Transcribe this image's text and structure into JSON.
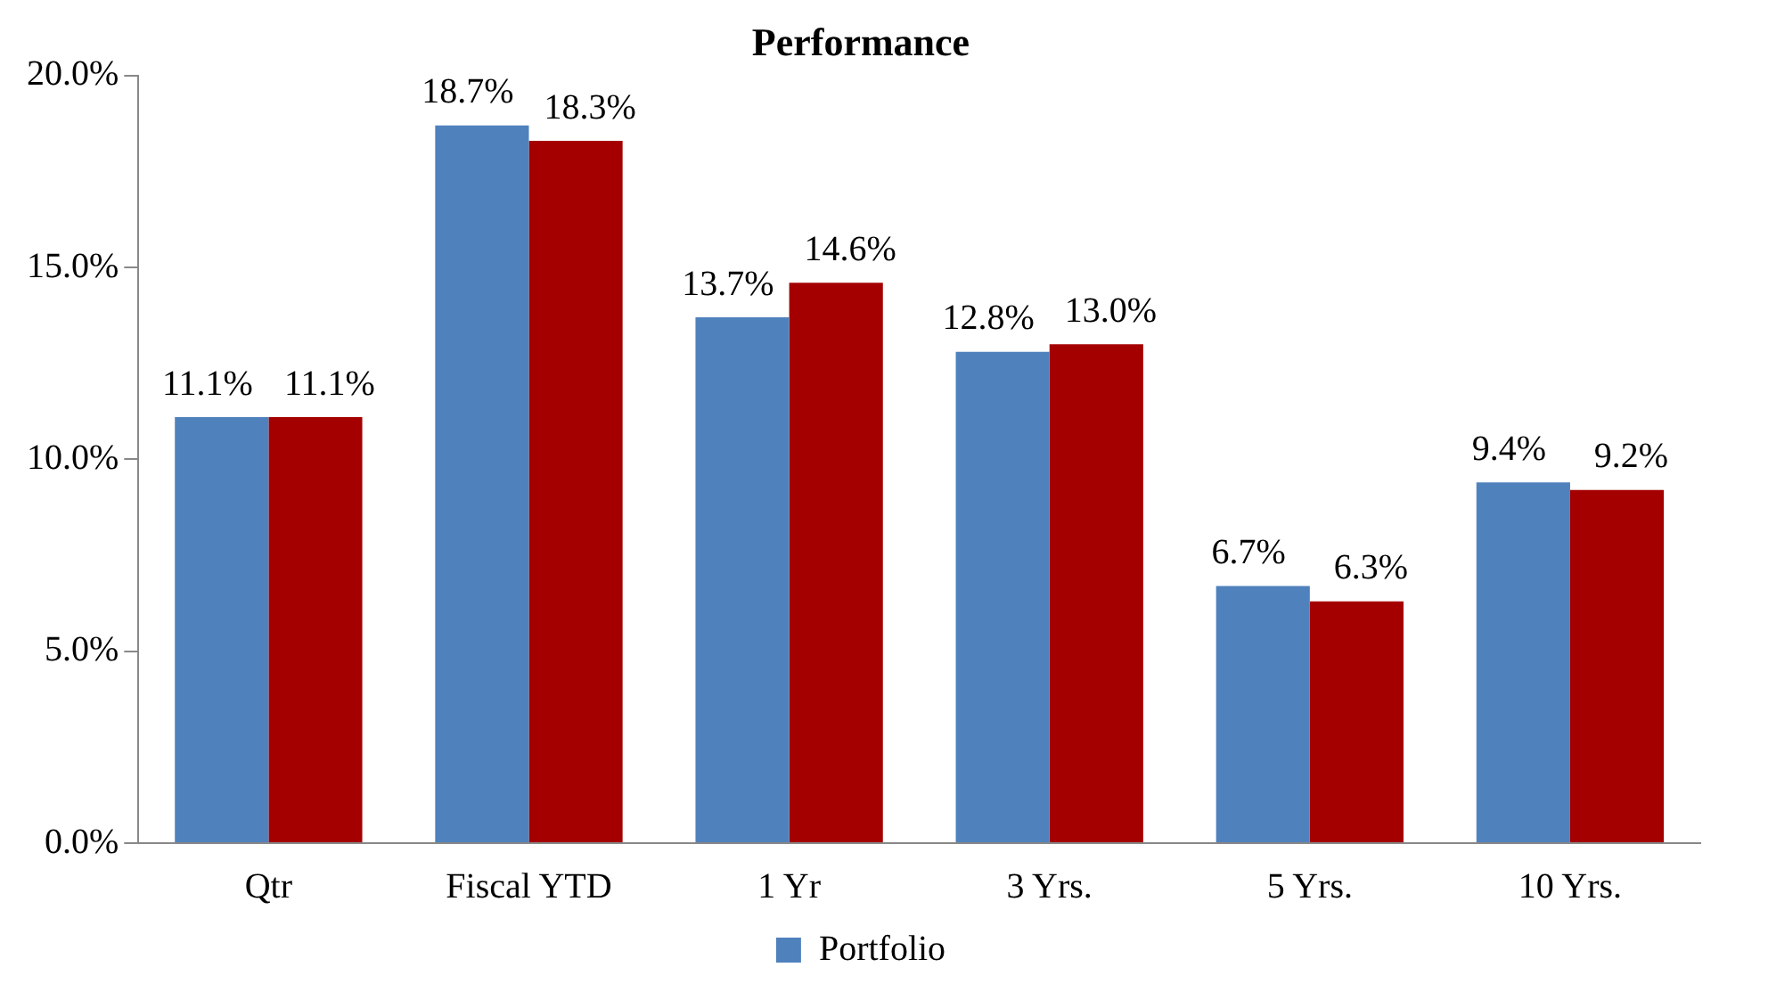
{
  "chart_data": {
    "type": "bar",
    "title": "Performance",
    "categories": [
      "Qtr",
      "Fiscal YTD",
      "1 Yr",
      "3 Yrs.",
      "5 Yrs.",
      "10 Yrs."
    ],
    "series": [
      {
        "name": "Portfolio",
        "color": "#4f81bd",
        "values": [
          11.1,
          18.7,
          13.7,
          12.8,
          6.7,
          9.4
        ],
        "value_labels": [
          "11.1%",
          "18.7%",
          "13.7%",
          "12.8%",
          "6.7%",
          "9.4%"
        ]
      },
      {
        "color": "#a50000",
        "values": [
          11.1,
          18.3,
          14.6,
          13.0,
          6.3,
          9.2
        ],
        "value_labels": [
          "11.1%",
          "18.3%",
          "14.6%",
          "13.0%",
          "6.3%",
          "9.2%"
        ]
      }
    ],
    "ylim": [
      0,
      20
    ],
    "yticks": [
      {
        "value": 0,
        "label": "0.0%"
      },
      {
        "value": 5,
        "label": "5.0%"
      },
      {
        "value": 10,
        "label": "10.0%"
      },
      {
        "value": 15,
        "label": "15.0%"
      },
      {
        "value": 20,
        "label": "20.0%"
      }
    ],
    "grid": false,
    "legend": "bottom"
  }
}
